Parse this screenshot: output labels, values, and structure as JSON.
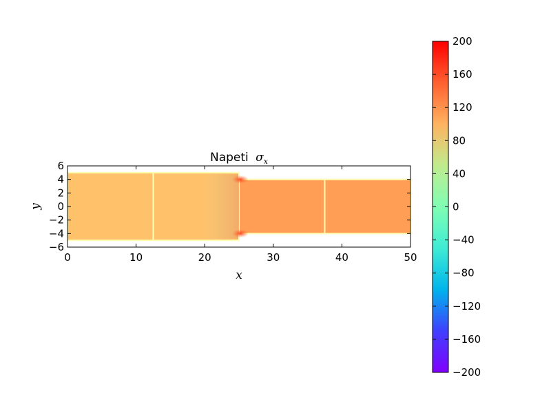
{
  "chart_data": {
    "type": "heatmap",
    "title": "Napeti",
    "title_symbol": "σ",
    "title_subscript": "x",
    "xlabel": "x",
    "ylabel": "y",
    "xlim": [
      0,
      50
    ],
    "ylim": [
      -6,
      6
    ],
    "x_ticks": [
      0,
      10,
      20,
      30,
      40,
      50
    ],
    "y_ticks": [
      6,
      4,
      2,
      0,
      -2,
      -4,
      -6
    ],
    "x_tick_labels": [
      "0",
      "10",
      "20",
      "30",
      "40",
      "50"
    ],
    "y_tick_labels": [
      "6",
      "4",
      "2",
      "0",
      "−2",
      "−4",
      "−6"
    ],
    "domain": {
      "left_section": {
        "x": [
          0,
          25
        ],
        "y": [
          -5,
          5
        ]
      },
      "right_section": {
        "x": [
          25,
          50
        ],
        "y": [
          -4,
          4
        ]
      },
      "internal_lines_x": [
        12.5,
        37.5
      ]
    },
    "field_values": {
      "left_section_mean": 90,
      "right_section_mean": 115,
      "step_corner_peak": 180,
      "free_edges": 0
    },
    "colorbar": {
      "colormap": "rainbow",
      "vmin": -200,
      "vmax": 200,
      "ticks": [
        200,
        160,
        120,
        80,
        40,
        0,
        -40,
        -80,
        -120,
        -160,
        -200
      ],
      "tick_labels": [
        "200",
        "160",
        "120",
        "80",
        "40",
        "0",
        "−40",
        "−80",
        "−120",
        "−160",
        "−200"
      ]
    }
  }
}
